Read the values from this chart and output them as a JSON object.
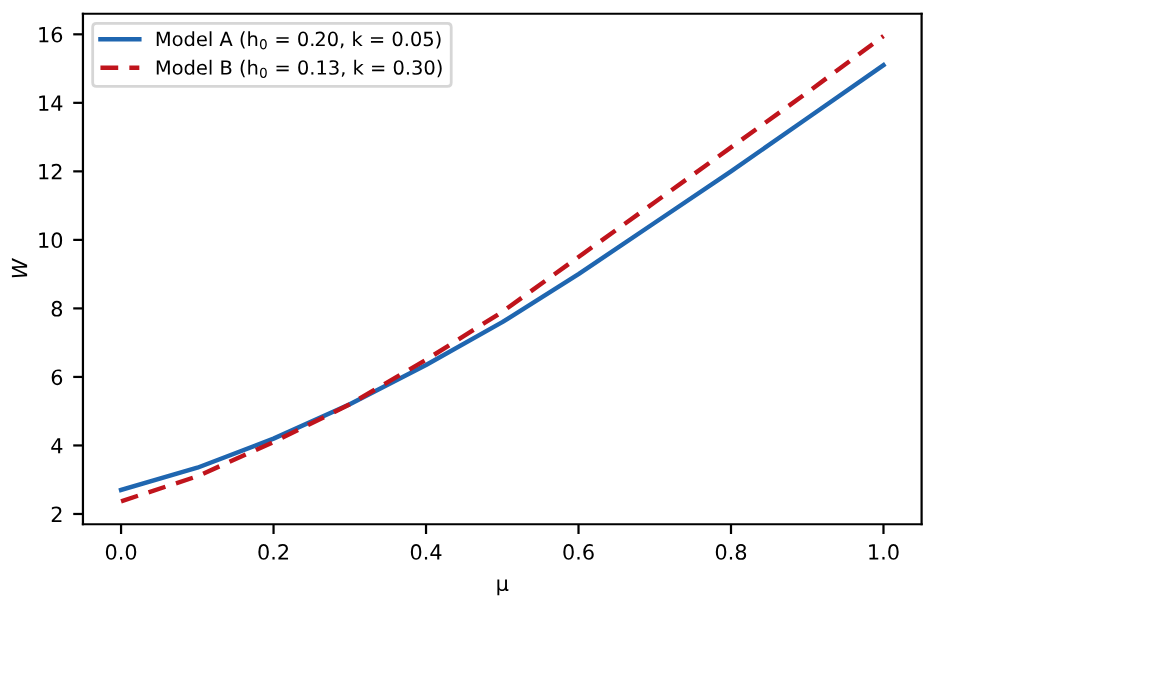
{
  "chart_data": {
    "type": "line",
    "xlabel": "μ",
    "ylabel": "W",
    "x": [
      0.0,
      0.1,
      0.2,
      0.3,
      0.4,
      0.5,
      0.6,
      0.7,
      0.8,
      0.9,
      1.0
    ],
    "series": [
      {
        "name": "Model A (h$_{0}$ = 0.20, k = 0.05)",
        "color": "#1f66b0",
        "line_style": "solid",
        "values": [
          2.7,
          3.35,
          4.2,
          5.2,
          6.35,
          7.6,
          9.0,
          10.5,
          12.0,
          13.55,
          15.1
        ]
      },
      {
        "name": "Model B (h$_{0}$ = 0.13, k = 0.30)",
        "color": "#c0141c",
        "line_style": "dashed",
        "values": [
          2.37,
          3.1,
          4.1,
          5.2,
          6.5,
          7.9,
          9.5,
          11.1,
          12.7,
          14.3,
          15.95
        ]
      }
    ],
    "xlim": [
      -0.05,
      1.05
    ],
    "ylim": [
      1.7,
      16.6
    ],
    "xticks": [
      {
        "value": 0.0,
        "label": "0.0"
      },
      0.2,
      0.4,
      0.6,
      0.8,
      {
        "value": 1.0,
        "label": "1.0"
      }
    ],
    "yticks": [
      2,
      4,
      6,
      8,
      10,
      12,
      14,
      16
    ],
    "grid": false,
    "legend": "top left",
    "marker": "none"
  }
}
